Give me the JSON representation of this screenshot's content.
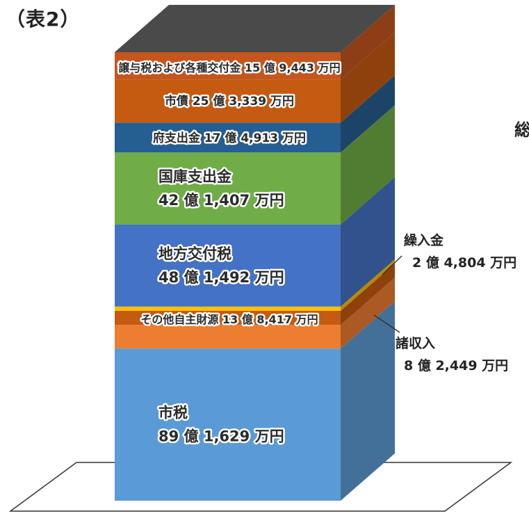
{
  "page_title": "（表2）",
  "cut_off_text": "総",
  "colors": {
    "市税": "#5b9bd5",
    "その他自主財源": "#ed7d31",
    "諸収入": "#c55a11",
    "繰入金": "#ffc000",
    "地方交付税": "#4472c4",
    "国庫支出金": "#70ad47",
    "府支出金": "#255e91",
    "市債": "#c55a11",
    "譲与税および各種交付金": "#c4561e",
    "top_cap": "#4a4a4a"
  },
  "chart_data": {
    "type": "bar",
    "stacked": true,
    "style": "3d",
    "categories": [
      ""
    ],
    "unit": "万円",
    "series": [
      {
        "name": "市税",
        "label_line1": "市税",
        "label_line2": "89 億 1,629 万円",
        "value": 891629
      },
      {
        "name": "その他自主財源",
        "label_line1": "その他自主財源 13 億 8,417 万円",
        "label_line2": "",
        "value": 138417
      },
      {
        "name": "諸収入",
        "label_line1": "諸収入",
        "label_line2": "8 億 2,449 万円",
        "value": 82449
      },
      {
        "name": "繰入金",
        "label_line1": "繰入金",
        "label_line2": "2 億 4,804 万円",
        "value": 24804
      },
      {
        "name": "地方交付税",
        "label_line1": "地方交付税",
        "label_line2": "48 億 1,492 万円",
        "value": 481492
      },
      {
        "name": "国庫支出金",
        "label_line1": "国庫支出金",
        "label_line2": "42 億 1,407 万円",
        "value": 421407
      },
      {
        "name": "府支出金",
        "label_line1": "府支出金 17 億 4,913 万円",
        "label_line2": "",
        "value": 174913
      },
      {
        "name": "市債",
        "label_line1": "市債 25 億 3,339 万円",
        "label_line2": "",
        "value": 253339
      },
      {
        "name": "譲与税および各種交付金",
        "label_line1": "譲与税および各種交付金 15 億 9,443 万円",
        "label_line2": "",
        "value": 159443
      }
    ]
  }
}
